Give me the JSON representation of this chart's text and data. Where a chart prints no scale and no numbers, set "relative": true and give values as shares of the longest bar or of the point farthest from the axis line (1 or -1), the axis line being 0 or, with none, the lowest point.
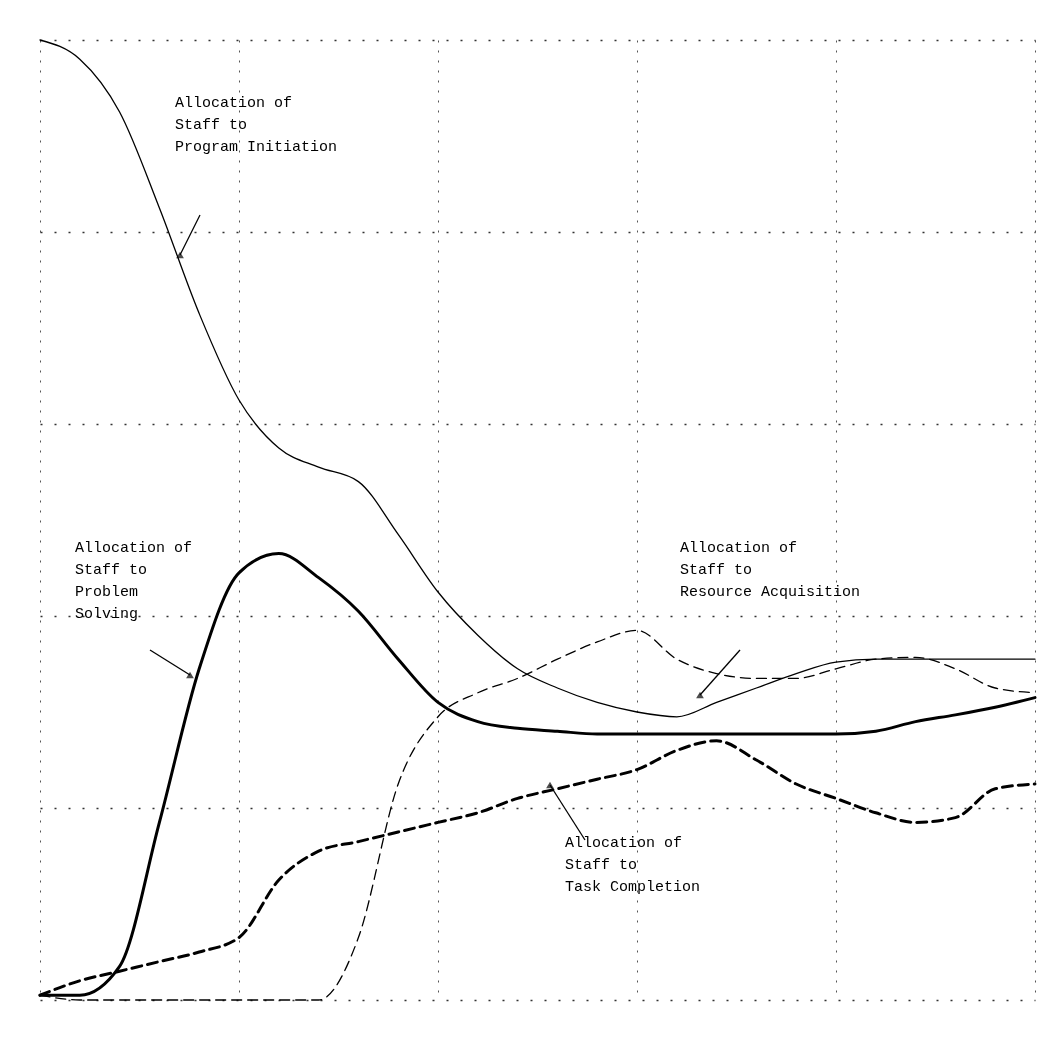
{
  "chart_data": {
    "type": "line",
    "relative": true,
    "grid": true,
    "marker": "none",
    "categories": [
      null,
      null,
      null,
      null,
      null,
      null,
      null,
      null,
      null,
      null,
      null,
      null,
      null,
      null,
      null,
      null,
      null,
      null,
      null,
      null,
      null,
      null,
      null,
      null,
      null,
      null
    ],
    "series": [
      {
        "color": "#000000",
        "line_style": "solid",
        "values": [
          1.0,
          0.98,
          0.925,
          0.825,
          0.715,
          0.625,
          0.575,
          0.555,
          0.54,
          0.485,
          0.425,
          0.38,
          0.345,
          0.325,
          0.31,
          0.3,
          0.295,
          0.31,
          0.325,
          0.34,
          0.352,
          0.355,
          0.355,
          0.355,
          0.355,
          0.355
        ]
      },
      {
        "color": "#000000",
        "line_style": "solid",
        "values": [
          0.005,
          0.005,
          0.035,
          0.185,
          0.345,
          0.445,
          0.465,
          0.44,
          0.405,
          0.355,
          0.31,
          0.29,
          0.283,
          0.28,
          0.277,
          0.277,
          0.277,
          0.277,
          0.277,
          0.277,
          0.277,
          0.28,
          0.29,
          0.297,
          0.305,
          0.315
        ]
      },
      {
        "color": "#000000",
        "line_style": "dashed",
        "values": [
          0.005,
          0,
          0,
          0,
          0,
          0,
          0,
          0,
          0.065,
          0.225,
          0.295,
          0.32,
          0.335,
          0.355,
          0.373,
          0.385,
          0.355,
          0.34,
          0.335,
          0.335,
          0.345,
          0.355,
          0.357,
          0.345,
          0.325,
          0.32
        ]
      },
      {
        "color": "#000000",
        "line_style": "dashed",
        "values": [
          0.005,
          0.02,
          0.03,
          0.04,
          0.05,
          0.065,
          0.125,
          0.155,
          0.165,
          0.175,
          0.185,
          0.195,
          0.21,
          0.22,
          0.23,
          0.24,
          0.26,
          0.27,
          0.25,
          0.225,
          0.21,
          0.195,
          0.185,
          0.19,
          0.22,
          0.225
        ]
      }
    ],
    "annotations": [
      "Allocation of\nStaff to\nProgram Initiation",
      "Allocation of\nStaff to\nProblem\nSolving",
      "Allocation of\nStaff to\nResource Acquisition",
      "Allocation of\nStaff to\nTask Completion"
    ]
  }
}
